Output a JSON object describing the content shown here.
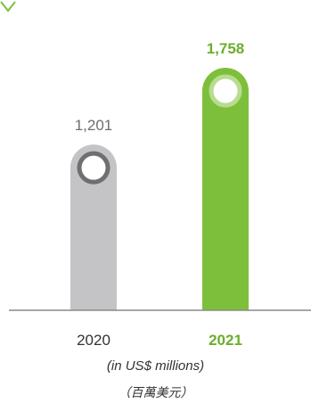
{
  "chart_data": {
    "type": "bar",
    "categories": [
      "2020",
      "2021"
    ],
    "values": [
      1201,
      1758
    ],
    "value_labels": [
      "1,201",
      "1,758"
    ],
    "unit_label_en": "(in US$ millions)",
    "unit_label_zh": "（百萬美元）",
    "ylim": [
      0,
      1758
    ],
    "grid": false,
    "colors": {
      "bar_2020": "#c4c4c6",
      "bar_2021": "#7dbf3a",
      "label_2020": "#6e6e6e",
      "label_2021": "#6cae2d",
      "marker_ring_2020": "#6f6f71",
      "marker_ring_2021": "#b8dc91",
      "axis": "#8a8a8a",
      "corner_fragment": "#7dbf3a"
    }
  }
}
